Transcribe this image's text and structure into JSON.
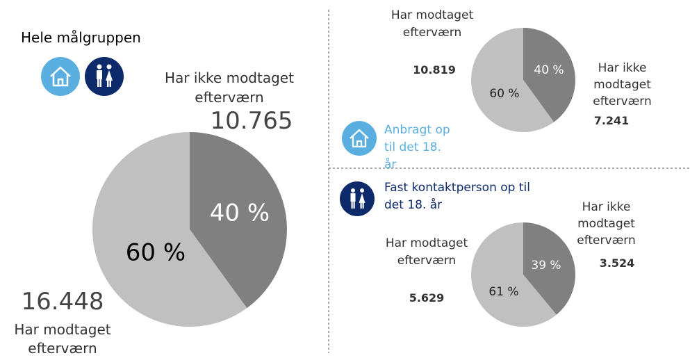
{
  "chart_data": [
    {
      "type": "pie",
      "title": "Hele målgruppen",
      "categories": [
        "Har ikke modtaget efterværn",
        "Har modtaget efterværn"
      ],
      "values": [
        40,
        60
      ],
      "value_labels": [
        "40 %",
        "60 %"
      ],
      "counts": [
        10765,
        16448
      ],
      "count_labels": [
        "10.765",
        "16.448"
      ],
      "colors": [
        "#808080",
        "#c0c0c0"
      ]
    },
    {
      "type": "pie",
      "title": "Anbragt op til det 18. år",
      "title_color": "#5aafe0",
      "categories": [
        "Har ikke modtaget efterværn",
        "Har modtaget efterværn"
      ],
      "values": [
        40,
        60
      ],
      "value_labels": [
        "40 %",
        "60 %"
      ],
      "counts": [
        7241,
        10819
      ],
      "count_labels": [
        "7.241",
        "10.819"
      ],
      "colors": [
        "#808080",
        "#c0c0c0"
      ]
    },
    {
      "type": "pie",
      "title": "Fast kontaktperson op til det 18. år",
      "title_color": "#0d2a6b",
      "categories": [
        "Har ikke modtaget efterværn",
        "Har modtaget efterværn"
      ],
      "values": [
        39,
        61
      ],
      "value_labels": [
        "39 %",
        "61 %"
      ],
      "counts": [
        3524,
        5629
      ],
      "count_labels": [
        "3.524",
        "5.629"
      ],
      "colors": [
        "#808080",
        "#c0c0c0"
      ]
    }
  ]
}
